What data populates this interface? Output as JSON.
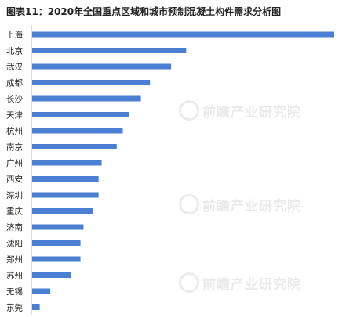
{
  "header": {
    "title": "图表11：2020年全国重点区域和城市预制混凝土构件需求分析图"
  },
  "watermark": {
    "text": "前瞻产业研究院"
  },
  "chart_data": {
    "type": "bar",
    "orientation": "horizontal",
    "title": "图表11：2020年全国重点区域和城市预制混凝土构件需求分析图",
    "xlabel": "",
    "ylabel": "",
    "grid": false,
    "bar_color": "#4a7fd4",
    "xlim": [
      0,
      100
    ],
    "categories": [
      "上海",
      "北京",
      "武汉",
      "成都",
      "长沙",
      "天津",
      "杭州",
      "南京",
      "广州",
      "西安",
      "深圳",
      "重庆",
      "济南",
      "沈阳",
      "郑州",
      "苏州",
      "无锡",
      "东莞"
    ],
    "values": [
      100,
      51,
      46,
      39,
      36,
      32,
      30,
      28,
      23,
      22,
      22,
      20,
      17,
      16,
      16,
      13,
      6,
      2.5
    ]
  }
}
